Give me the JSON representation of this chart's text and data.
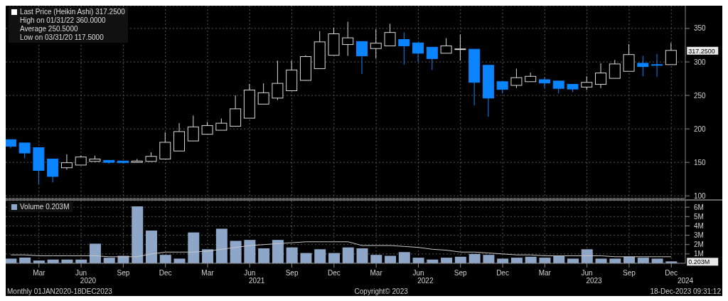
{
  "chart_data": [
    {
      "type": "candlestick",
      "x": [
        "2020-01",
        "2020-02",
        "2020-03",
        "2020-04",
        "2020-05",
        "2020-06",
        "2020-07",
        "2020-08",
        "2020-09",
        "2020-10",
        "2020-11",
        "2020-12",
        "2021-01",
        "2021-02",
        "2021-03",
        "2021-04",
        "2021-05",
        "2021-06",
        "2021-07",
        "2021-08",
        "2021-09",
        "2021-10",
        "2021-11",
        "2021-12",
        "2022-01",
        "2022-02",
        "2022-03",
        "2022-04",
        "2022-05",
        "2022-06",
        "2022-07",
        "2022-08",
        "2022-09",
        "2022-10",
        "2022-11",
        "2022-12",
        "2023-01",
        "2023-02",
        "2023-03",
        "2023-04",
        "2023-05",
        "2023-06",
        "2023-07",
        "2023-08",
        "2023-09",
        "2023-10",
        "2023-11",
        "2023-12"
      ],
      "ohlc": [
        [
          184,
          184,
          171,
          174
        ],
        [
          179,
          179,
          156,
          164
        ],
        [
          172,
          172,
          117.5,
          138
        ],
        [
          155,
          155,
          120,
          129
        ],
        [
          142,
          162,
          139,
          149.5
        ],
        [
          146,
          160,
          146,
          158
        ],
        [
          151.5,
          160,
          151,
          155
        ],
        [
          153,
          153,
          148,
          150
        ],
        [
          152,
          152,
          149,
          149.5
        ],
        [
          150,
          155,
          150,
          152
        ],
        [
          151.5,
          165,
          151,
          159
        ],
        [
          155,
          195,
          155,
          180
        ],
        [
          167,
          208.5,
          167,
          196
        ],
        [
          182,
          220,
          182,
          203
        ],
        [
          192,
          210.5,
          192,
          205
        ],
        [
          198,
          215.5,
          198,
          208.5
        ],
        [
          204,
          250,
          204,
          230
        ],
        [
          216,
          267,
          216,
          258
        ],
        [
          237,
          268,
          237,
          254
        ],
        [
          246,
          302,
          243,
          268
        ],
        [
          257,
          302,
          257,
          288
        ],
        [
          272.5,
          310,
          272,
          308
        ],
        [
          290,
          346,
          290,
          330
        ],
        [
          310,
          351,
          310,
          342
        ],
        [
          326,
          360,
          309,
          336
        ],
        [
          330.5,
          330.5,
          282,
          309
        ],
        [
          320,
          349,
          305,
          328
        ],
        [
          324,
          357,
          324,
          344
        ],
        [
          333.5,
          344,
          296,
          324
        ],
        [
          328.5,
          328.5,
          300,
          313
        ],
        [
          322,
          322,
          288,
          305
        ],
        [
          313,
          335.5,
          313,
          324
        ],
        [
          319,
          341,
          302,
          319.5
        ],
        [
          319,
          319,
          235,
          269.5
        ],
        [
          295,
          295,
          218,
          246
        ],
        [
          270.5,
          270.5,
          253,
          259
        ],
        [
          265,
          290,
          261,
          276.5
        ],
        [
          270.5,
          284,
          270.5,
          278.5
        ],
        [
          273.5,
          277,
          261,
          268.5
        ],
        [
          271.5,
          271.5,
          253,
          260.5
        ],
        [
          266.5,
          266.5,
          255,
          259.5
        ],
        [
          262.5,
          278.5,
          258,
          269.5
        ],
        [
          266.5,
          298,
          261,
          283.5
        ],
        [
          275.5,
          303,
          275.5,
          297
        ],
        [
          286,
          326.5,
          286,
          311
        ],
        [
          298,
          309,
          278.5,
          293
        ],
        [
          296,
          312,
          278,
          295
        ],
        [
          296,
          328.5,
          296,
          317.25
        ]
      ],
      "colors": [
        "#0a84ff",
        "#0a84ff",
        "#0a84ff",
        "#0a84ff",
        "#d9d9d9",
        "#d9d9d9",
        "#d9d9d9",
        "#0a84ff",
        "#0a84ff",
        "#d9d9d9",
        "#d9d9d9",
        "#d9d9d9",
        "#d9d9d9",
        "#d9d9d9",
        "#d9d9d9",
        "#d9d9d9",
        "#d9d9d9",
        "#d9d9d9",
        "#d9d9d9",
        "#d9d9d9",
        "#d9d9d9",
        "#d9d9d9",
        "#d9d9d9",
        "#d9d9d9",
        "#d9d9d9",
        "#0a84ff",
        "#d9d9d9",
        "#d9d9d9",
        "#0a84ff",
        "#0a84ff",
        "#0a84ff",
        "#d9d9d9",
        "#d9d9d9",
        "#0a84ff",
        "#0a84ff",
        "#0a84ff",
        "#d9d9d9",
        "#d9d9d9",
        "#0a84ff",
        "#0a84ff",
        "#0a84ff",
        "#d9d9d9",
        "#d9d9d9",
        "#d9d9d9",
        "#d9d9d9",
        "#0a84ff",
        "#0a84ff",
        "#d9d9d9"
      ],
      "xlim": [
        "2019-12-20",
        "2024-01-01"
      ],
      "xticks": [
        {
          "value": "2020-03",
          "label": null
        },
        {
          "value": "2020-06",
          "label": null
        },
        {
          "value": "2020-09",
          "label": null
        },
        {
          "value": "2020-12",
          "label": null
        },
        {
          "value": "2021-03",
          "label": null
        },
        {
          "value": "2021-06",
          "label": null
        },
        {
          "value": "2021-09",
          "label": null
        },
        {
          "value": "2021-12",
          "label": null
        },
        {
          "value": "2022-03",
          "label": null
        },
        {
          "value": "2022-06",
          "label": null
        },
        {
          "value": "2022-09",
          "label": null
        },
        {
          "value": "2022-12",
          "label": null
        },
        {
          "value": "2023-03",
          "label": null
        },
        {
          "value": "2023-06",
          "label": null
        },
        {
          "value": "2023-09",
          "label": null
        },
        {
          "value": "2023-12",
          "label": null
        }
      ],
      "ylim": [
        96,
        384
      ],
      "yticks": [
        100,
        150,
        200,
        250,
        300,
        350
      ],
      "grid": true,
      "tick_labels": "y",
      "annotations": [
        "Last Price (Heikin Ashi) 317.2500",
        "High on 01/31/22 360.0000",
        "Average 250.5000",
        "Low on 03/31/20 117.5000",
        {
          "text": "317.2500",
          "x": "2023-12",
          "y": 317.25
        }
      ]
    },
    {
      "type": "bar",
      "legend": "top left",
      "x": [
        "2020-01",
        "2020-02",
        "2020-03",
        "2020-04",
        "2020-05",
        "2020-06",
        "2020-07",
        "2020-08",
        "2020-09",
        "2020-10",
        "2020-11",
        "2020-12",
        "2021-01",
        "2021-02",
        "2021-03",
        "2021-04",
        "2021-05",
        "2021-06",
        "2021-07",
        "2021-08",
        "2021-09",
        "2021-10",
        "2021-11",
        "2021-12",
        "2022-01",
        "2022-02",
        "2022-03",
        "2022-04",
        "2022-05",
        "2022-06",
        "2022-07",
        "2022-08",
        "2022-09",
        "2022-10",
        "2022-11",
        "2022-12",
        "2023-01",
        "2023-02",
        "2023-03",
        "2023-04",
        "2023-05",
        "2023-06",
        "2023-07",
        "2023-08",
        "2023-09",
        "2023-10",
        "2023-11",
        "2023-12"
      ],
      "series": [
        {
          "name": "Volume 0.203M",
          "type": "bar",
          "color": "#8ea6c8",
          "values": [
            0.5,
            0.6,
            0.3,
            0.4,
            0.4,
            0.4,
            2.1,
            0.6,
            0.8,
            6.1,
            3.5,
            0.9,
            0.5,
            3.3,
            1.5,
            3.7,
            2.4,
            2.5,
            1.6,
            2.5,
            1.7,
            1.1,
            1.5,
            1.1,
            1.7,
            1.6,
            0.9,
            0.8,
            1.2,
            0.6,
            0.4,
            0.6,
            0.7,
            1.0,
            0.9,
            0.5,
            0.6,
            0.7,
            0.6,
            0.8,
            0.5,
            1.5,
            0.5,
            0.5,
            0.7,
            0.6,
            0.5,
            0.203
          ]
        },
        {
          "type": "line",
          "color": "#c8c8c8",
          "values": [
            0.9,
            0.9,
            0.8,
            0.8,
            0.8,
            0.8,
            0.8,
            0.7,
            0.7,
            0.7,
            1.0,
            1.2,
            1.2,
            1.2,
            1.3,
            1.5,
            1.7,
            1.9,
            2.0,
            2.1,
            2.2,
            2.3,
            2.3,
            2.3,
            2.3,
            1.9,
            1.9,
            1.9,
            1.8,
            1.7,
            1.5,
            1.4,
            1.2,
            1.2,
            1.1,
            1.0,
            0.9,
            0.9,
            0.8,
            0.8,
            0.8,
            0.8,
            0.8,
            0.7,
            0.7,
            0.7,
            0.7,
            0.7
          ]
        }
      ],
      "xlim": [
        "2019-12-20",
        "2024-01-01"
      ],
      "xticks": [
        {
          "value": "2020-03",
          "label": "Mar"
        },
        {
          "value": "2020-06",
          "label": "Jun"
        },
        {
          "value": "2020-09",
          "label": "Sep"
        },
        {
          "value": "2020-12",
          "label": "Dec"
        },
        {
          "value": "2021-03",
          "label": "Mar"
        },
        {
          "value": "2021-06",
          "label": "Jun"
        },
        {
          "value": "2021-09",
          "label": "Sep"
        },
        {
          "value": "2021-12",
          "label": "Dec"
        },
        {
          "value": "2022-03",
          "label": "Mar"
        },
        {
          "value": "2022-06",
          "label": "Jun"
        },
        {
          "value": "2022-09",
          "label": "Sep"
        },
        {
          "value": "2022-12",
          "label": "Dec"
        },
        {
          "value": "2023-03",
          "label": "Mar"
        },
        {
          "value": "2023-06",
          "label": "Jun"
        },
        {
          "value": "2023-09",
          "label": "Sep"
        },
        {
          "value": "2023-12",
          "label": "Dec"
        }
      ],
      "x2lim": [
        "2019-12-20",
        "2024-01-01"
      ],
      "x2ticks": [
        {
          "value": "2020-06-16",
          "label": "2020"
        },
        {
          "value": "2021-06-16",
          "label": "2021"
        },
        {
          "value": "2022-06-16",
          "label": "2022"
        },
        {
          "value": "2023-06-16",
          "label": "2023"
        },
        {
          "value": "2024-01-01",
          "label": "2024"
        }
      ],
      "ylim": [
        0,
        6.7
      ],
      "yticks": [
        {
          "value": 1,
          "label": "1M"
        },
        {
          "value": 2,
          "label": "2M"
        },
        {
          "value": 3,
          "label": "3M"
        },
        {
          "value": 4,
          "label": "4M"
        },
        {
          "value": 5,
          "label": "5M"
        },
        {
          "value": 6,
          "label": "6M"
        }
      ],
      "grid": true,
      "annotations": [
        "Monthly 01JAN2020-18DEC2023",
        "Copyright© 2023",
        "18-Dec-2023 09:31:12",
        {
          "text": "0.203M",
          "x": "2023-12",
          "y": 0.203
        }
      ]
    }
  ]
}
